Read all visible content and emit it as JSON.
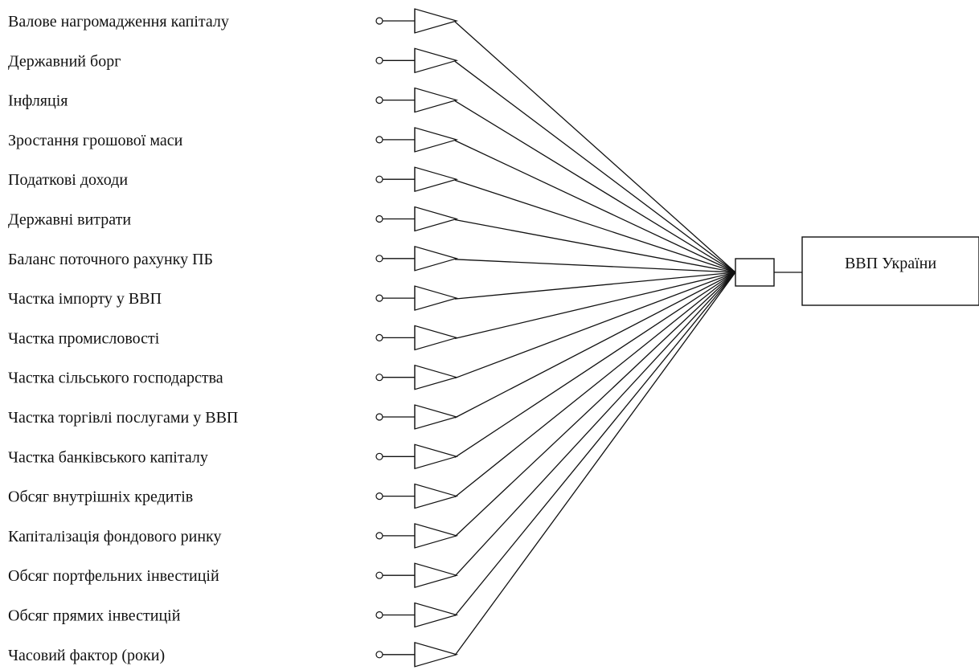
{
  "inputs": [
    "Валове нагромадження капіталу",
    "Державний борг",
    "Інфляція",
    "Зростання грошової маси",
    "Податкові доходи",
    "Державні витрати",
    "Баланс поточного рахунку ПБ",
    "Частка імпорту у ВВП",
    "Частка промисловості",
    "Частка сільського господарства",
    "Частка торгівлі послугами у ВВП",
    "Частка банківського капіталу",
    "Обсяг внутрішніх кредитів",
    "Капіталізація фондового ринку",
    "Обсяг портфельних інвестицій",
    "Обсяг прямих інвестицій",
    "Часовий фактор (роки)"
  ],
  "output": {
    "label": "ВВП України"
  }
}
